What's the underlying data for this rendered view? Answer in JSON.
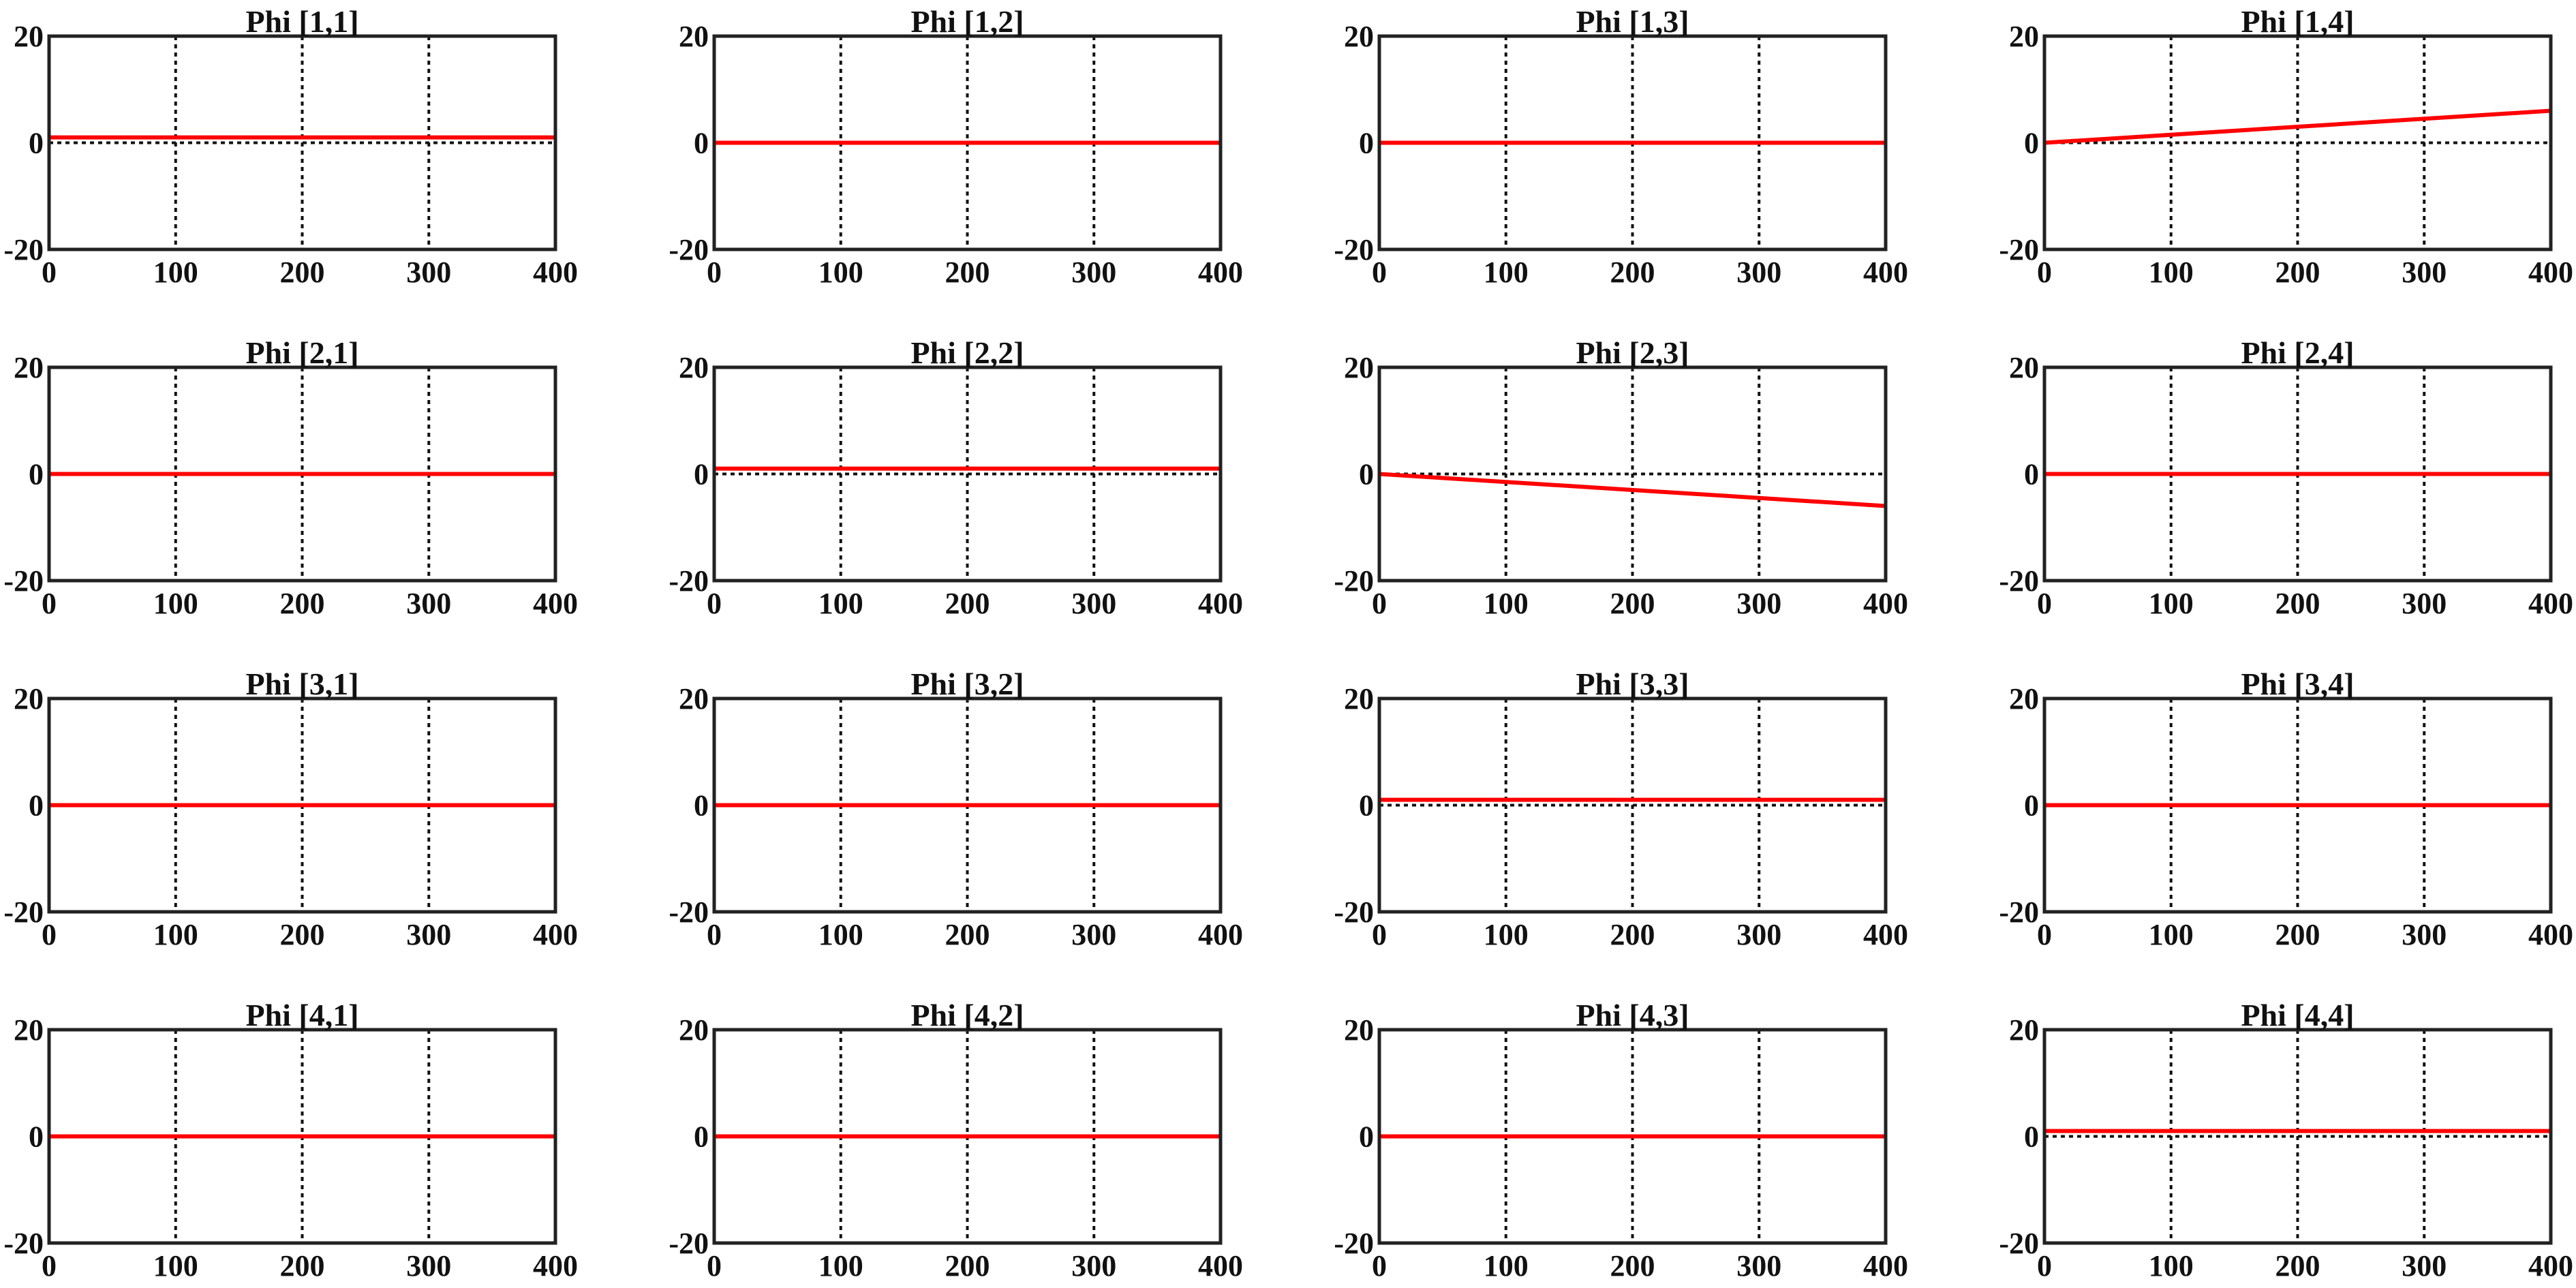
{
  "chart_data": [
    {
      "type": "line",
      "title": "Phi [1,1]",
      "x": [
        0,
        100,
        200,
        300,
        400
      ],
      "values": [
        1,
        1,
        1,
        1,
        1
      ],
      "color": "#ff0000",
      "xlim": [
        0,
        400
      ],
      "ylim": [
        -20,
        20
      ],
      "xticks": [
        0,
        100,
        200,
        300,
        400
      ],
      "yticks": [
        -20,
        0,
        20
      ],
      "grid": true
    },
    {
      "type": "line",
      "title": "Phi [1,2]",
      "x": [
        0,
        100,
        200,
        300,
        400
      ],
      "values": [
        0,
        0,
        0,
        0,
        0
      ],
      "color": "#ff0000",
      "xlim": [
        0,
        400
      ],
      "ylim": [
        -20,
        20
      ],
      "xticks": [
        0,
        100,
        200,
        300,
        400
      ],
      "yticks": [
        -20,
        0,
        20
      ],
      "grid": true
    },
    {
      "type": "line",
      "title": "Phi [1,3]",
      "x": [
        0,
        100,
        200,
        300,
        400
      ],
      "values": [
        0,
        0,
        0,
        0,
        0
      ],
      "color": "#ff0000",
      "xlim": [
        0,
        400
      ],
      "ylim": [
        -20,
        20
      ],
      "xticks": [
        0,
        100,
        200,
        300,
        400
      ],
      "yticks": [
        -20,
        0,
        20
      ],
      "grid": true
    },
    {
      "type": "line",
      "title": "Phi [1,4]",
      "x": [
        0,
        100,
        200,
        300,
        400
      ],
      "values": [
        0,
        1.5,
        3,
        4.5,
        6
      ],
      "color": "#ff0000",
      "xlim": [
        0,
        400
      ],
      "ylim": [
        -20,
        20
      ],
      "xticks": [
        0,
        100,
        200,
        300,
        400
      ],
      "yticks": [
        -20,
        0,
        20
      ],
      "grid": true
    },
    {
      "type": "line",
      "title": "Phi [2,1]",
      "x": [
        0,
        100,
        200,
        300,
        400
      ],
      "values": [
        0,
        0,
        0,
        0,
        0
      ],
      "color": "#ff0000",
      "xlim": [
        0,
        400
      ],
      "ylim": [
        -20,
        20
      ],
      "xticks": [
        0,
        100,
        200,
        300,
        400
      ],
      "yticks": [
        -20,
        0,
        20
      ],
      "grid": true
    },
    {
      "type": "line",
      "title": "Phi [2,2]",
      "x": [
        0,
        100,
        200,
        300,
        400
      ],
      "values": [
        1,
        1,
        1,
        1,
        1
      ],
      "color": "#ff0000",
      "xlim": [
        0,
        400
      ],
      "ylim": [
        -20,
        20
      ],
      "xticks": [
        0,
        100,
        200,
        300,
        400
      ],
      "yticks": [
        -20,
        0,
        20
      ],
      "grid": true
    },
    {
      "type": "line",
      "title": "Phi [2,3]",
      "x": [
        0,
        100,
        200,
        300,
        400
      ],
      "values": [
        0,
        -1.5,
        -3,
        -4.5,
        -6
      ],
      "color": "#ff0000",
      "xlim": [
        0,
        400
      ],
      "ylim": [
        -20,
        20
      ],
      "xticks": [
        0,
        100,
        200,
        300,
        400
      ],
      "yticks": [
        -20,
        0,
        20
      ],
      "grid": true
    },
    {
      "type": "line",
      "title": "Phi [2,4]",
      "x": [
        0,
        100,
        200,
        300,
        400
      ],
      "values": [
        0,
        0,
        0,
        0,
        0
      ],
      "color": "#ff0000",
      "xlim": [
        0,
        400
      ],
      "ylim": [
        -20,
        20
      ],
      "xticks": [
        0,
        100,
        200,
        300,
        400
      ],
      "yticks": [
        -20,
        0,
        20
      ],
      "grid": true
    },
    {
      "type": "line",
      "title": "Phi [3,1]",
      "x": [
        0,
        100,
        200,
        300,
        400
      ],
      "values": [
        0,
        0,
        0,
        0,
        0
      ],
      "color": "#ff0000",
      "xlim": [
        0,
        400
      ],
      "ylim": [
        -20,
        20
      ],
      "xticks": [
        0,
        100,
        200,
        300,
        400
      ],
      "yticks": [
        -20,
        0,
        20
      ],
      "grid": true
    },
    {
      "type": "line",
      "title": "Phi [3,2]",
      "x": [
        0,
        100,
        200,
        300,
        400
      ],
      "values": [
        0,
        0,
        0,
        0,
        0
      ],
      "color": "#ff0000",
      "xlim": [
        0,
        400
      ],
      "ylim": [
        -20,
        20
      ],
      "xticks": [
        0,
        100,
        200,
        300,
        400
      ],
      "yticks": [
        -20,
        0,
        20
      ],
      "grid": true
    },
    {
      "type": "line",
      "title": "Phi [3,3]",
      "x": [
        0,
        100,
        200,
        300,
        400
      ],
      "values": [
        1,
        1,
        1,
        1,
        1
      ],
      "color": "#ff0000",
      "xlim": [
        0,
        400
      ],
      "ylim": [
        -20,
        20
      ],
      "xticks": [
        0,
        100,
        200,
        300,
        400
      ],
      "yticks": [
        -20,
        0,
        20
      ],
      "grid": true
    },
    {
      "type": "line",
      "title": "Phi [3,4]",
      "x": [
        0,
        100,
        200,
        300,
        400
      ],
      "values": [
        0,
        0,
        0,
        0,
        0
      ],
      "color": "#ff0000",
      "xlim": [
        0,
        400
      ],
      "ylim": [
        -20,
        20
      ],
      "xticks": [
        0,
        100,
        200,
        300,
        400
      ],
      "yticks": [
        -20,
        0,
        20
      ],
      "grid": true
    },
    {
      "type": "line",
      "title": "Phi [4,1]",
      "x": [
        0,
        100,
        200,
        300,
        400
      ],
      "values": [
        0,
        0,
        0,
        0,
        0
      ],
      "color": "#ff0000",
      "xlim": [
        0,
        400
      ],
      "ylim": [
        -20,
        20
      ],
      "xticks": [
        0,
        100,
        200,
        300,
        400
      ],
      "yticks": [
        -20,
        0,
        20
      ],
      "grid": true
    },
    {
      "type": "line",
      "title": "Phi [4,2]",
      "x": [
        0,
        100,
        200,
        300,
        400
      ],
      "values": [
        0,
        0,
        0,
        0,
        0
      ],
      "color": "#ff0000",
      "xlim": [
        0,
        400
      ],
      "ylim": [
        -20,
        20
      ],
      "xticks": [
        0,
        100,
        200,
        300,
        400
      ],
      "yticks": [
        -20,
        0,
        20
      ],
      "grid": true
    },
    {
      "type": "line",
      "title": "Phi [4,3]",
      "x": [
        0,
        100,
        200,
        300,
        400
      ],
      "values": [
        0,
        0,
        0,
        0,
        0
      ],
      "color": "#ff0000",
      "xlim": [
        0,
        400
      ],
      "ylim": [
        -20,
        20
      ],
      "xticks": [
        0,
        100,
        200,
        300,
        400
      ],
      "yticks": [
        -20,
        0,
        20
      ],
      "grid": true
    },
    {
      "type": "line",
      "title": "Phi [4,4]",
      "x": [
        0,
        100,
        200,
        300,
        400
      ],
      "values": [
        1,
        1,
        1,
        1,
        1
      ],
      "color": "#ff0000",
      "xlim": [
        0,
        400
      ],
      "ylim": [
        -20,
        20
      ],
      "xticks": [
        0,
        100,
        200,
        300,
        400
      ],
      "yticks": [
        -20,
        0,
        20
      ],
      "grid": true
    }
  ]
}
